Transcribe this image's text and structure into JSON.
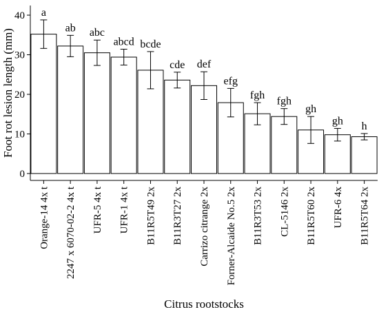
{
  "chart_data": {
    "type": "bar",
    "xlabel": "Citrus rootstocks",
    "ylabel": "Foot rot lesion length (mm)",
    "ylim": [
      0,
      40
    ],
    "yticks": [
      0,
      10,
      20,
      30,
      40
    ],
    "grid": false,
    "bar_color": "#ffffff",
    "edge_color": "#000000",
    "categories": [
      "Orange-14 4x t",
      "2247 x 6070-02-2 4x t",
      "UFR-5 4x t",
      "UFR-1 4x t",
      "B11R5T49 2x",
      "B11R3T27 2x",
      "Carrizo citrange 2x",
      "Forner-Alcaide No.5 2x",
      "B11R3T53 2x",
      "CL-5146 2x",
      "B11R5T60 2x",
      "UFR-6 4x",
      "B11R5T64 2x"
    ],
    "values": [
      35.2,
      32.2,
      30.5,
      29.4,
      26.1,
      23.6,
      22.2,
      17.9,
      15.1,
      14.4,
      11.0,
      9.8,
      9.3
    ],
    "error": [
      3.6,
      2.7,
      3.2,
      2.0,
      4.7,
      2.0,
      3.5,
      3.6,
      2.8,
      2.0,
      3.4,
      1.6,
      0.8
    ],
    "significance_letters": [
      "a",
      "ab",
      "abc",
      "abcd",
      "bcde",
      "cde",
      "def",
      "efg",
      "fgh",
      "fgh",
      "gh",
      "gh",
      "h"
    ]
  }
}
